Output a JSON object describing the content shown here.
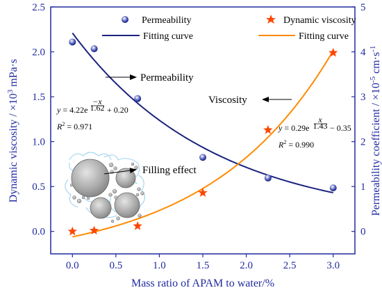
{
  "chart_data": {
    "type": "scatter",
    "x_axis": {
      "label": "Mass ratio of APAM to water/%",
      "range": [
        -0.25,
        3.25
      ],
      "ticks": [
        "0.0",
        "0.5",
        "1.0",
        "1.5",
        "2.0",
        "2.5",
        "3.0"
      ],
      "tick_values": [
        0,
        0.5,
        1,
        1.5,
        2,
        2.5,
        3
      ]
    },
    "y_left_axis": {
      "label_parts": {
        "pre": "Dynamic viscosity / ×10",
        "sup": "3",
        "post": " mPa·s"
      },
      "range": [
        -0.25,
        2.5
      ],
      "ticks": [
        "0.0",
        "0.5",
        "1.0",
        "1.5",
        "2.0",
        "2.5"
      ],
      "tick_values": [
        0,
        0.5,
        1,
        1.5,
        2,
        2.5
      ]
    },
    "y_right_axis": {
      "label_parts": {
        "pre": "Permeability coefficient / ×10",
        "sup": "-5",
        "post": " cm·s",
        "sup2": "-1"
      },
      "range": [
        -0.5,
        5
      ],
      "ticks": [
        "0",
        "1",
        "2",
        "3",
        "4",
        "5"
      ],
      "tick_values": [
        0,
        1,
        2,
        3,
        4,
        5
      ]
    },
    "series": [
      {
        "name": "Permeability",
        "axis": "right",
        "marker": "circle",
        "color": "#1a237e",
        "x": [
          0,
          0.25,
          0.75,
          1.5,
          2.25,
          3.0
        ],
        "y": [
          4.22,
          4.07,
          2.96,
          1.65,
          1.19,
          0.97
        ]
      },
      {
        "name": "Dynamic viscosity",
        "axis": "left",
        "marker": "star",
        "color": "#ff4500",
        "x": [
          0,
          0.25,
          0.75,
          1.5,
          2.25,
          3.0
        ],
        "y": [
          0.0,
          0.01,
          0.06,
          0.43,
          1.13,
          1.99
        ]
      }
    ],
    "fits": [
      {
        "name": "Fitting curve",
        "axis": "right",
        "color": "#1a237e",
        "model": "y = 4.22 e^(-x/1.62) + 0.20"
      },
      {
        "name": "Fitting curve",
        "axis": "left",
        "color": "#ff8a00",
        "model": "y = 0.29 e^(x/1.43) - 0.35"
      }
    ],
    "equations": {
      "permeability": {
        "lhs": "y",
        "coef": "= 4.22e",
        "exp_num": "−x",
        "exp_den": "1.62",
        "tail": "+ 0.20",
        "r2_value": "= 0.971"
      },
      "viscosity": {
        "lhs": "y",
        "coef": "= 0.29e",
        "exp_num": "x",
        "exp_den": "1.43",
        "tail": "− 0.35",
        "r2_value": "= 0.990"
      }
    },
    "annotations": {
      "permeability": "Permeability",
      "viscosity": "Viscosity",
      "filling": "Filling effect"
    },
    "legend": {
      "placement": "top",
      "entries": [
        "Permeability",
        "Dynamic viscosity",
        "Fitting curve",
        "Fitting curve"
      ]
    },
    "grid": false,
    "colors": {
      "axis": "#1f2a9e",
      "permeability": "#1a237e",
      "viscosity_marker": "#ff4500",
      "viscosity_fit": "#ff8a00"
    }
  }
}
